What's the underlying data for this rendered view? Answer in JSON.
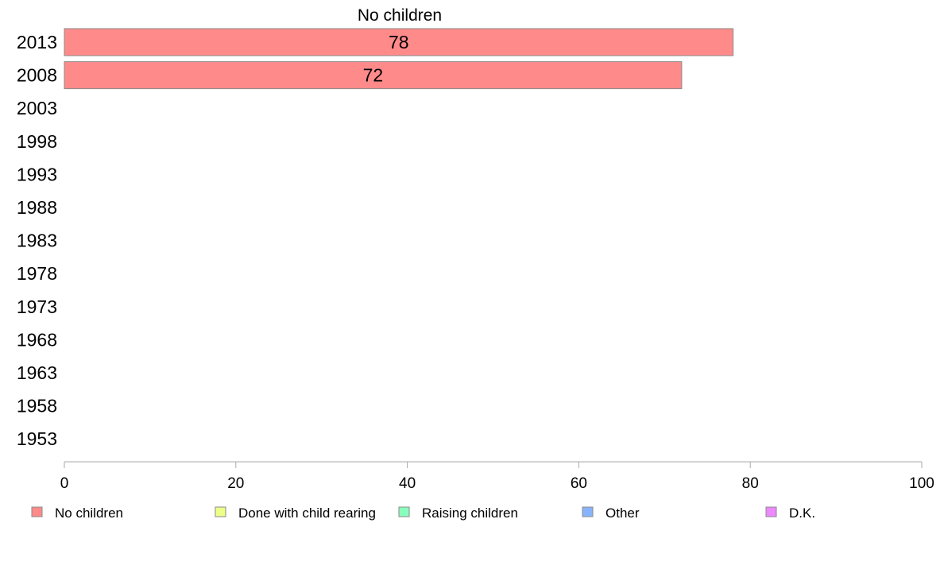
{
  "chart_data": {
    "type": "bar",
    "orientation": "horizontal",
    "title": "No children",
    "categories": [
      "2013",
      "2008",
      "2003",
      "1998",
      "1993",
      "1988",
      "1983",
      "1978",
      "1973",
      "1968",
      "1963",
      "1958",
      "1953"
    ],
    "series": [
      {
        "name": "No children",
        "color": "#ff8a8a",
        "values": [
          78,
          72,
          null,
          null,
          null,
          null,
          null,
          null,
          null,
          null,
          null,
          null,
          null
        ]
      }
    ],
    "data_labels": [
      "78",
      "72",
      "",
      "",
      "",
      "",
      "",
      "",
      "",
      "",
      "",
      "",
      ""
    ],
    "xlim": [
      0,
      100
    ],
    "xticks": [
      0,
      20,
      40,
      60,
      80,
      100
    ],
    "grid": false,
    "legend_position": "bottom",
    "legend": [
      {
        "label": "No children",
        "color": "#ff8a8a"
      },
      {
        "label": "Done with child rearing",
        "color": "#eeff88"
      },
      {
        "label": "Raising children",
        "color": "#88ffbb"
      },
      {
        "label": "Other",
        "color": "#88b4ff"
      },
      {
        "label": "D.K.",
        "color": "#ee88ff"
      }
    ]
  }
}
